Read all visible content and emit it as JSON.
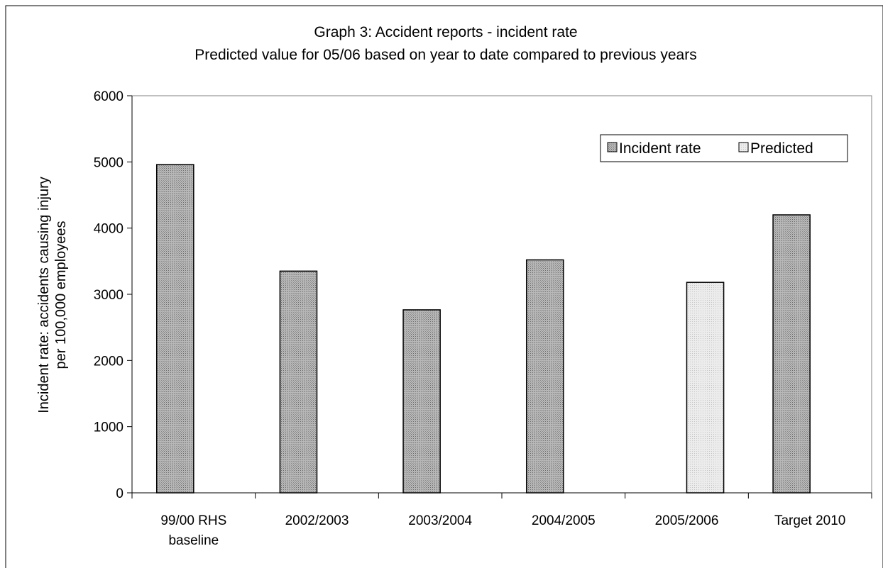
{
  "chart_data": {
    "type": "bar",
    "title": "Graph 3: Accident reports - incident rate",
    "subtitle": "Predicted value for 05/06 based on year to date compared to previous years",
    "ylabel_line1": "Incident rate: accidents causing injury",
    "ylabel_line2": "per 100,000 employees",
    "xlabel": "",
    "ylim": [
      0,
      6000
    ],
    "yticks": [
      0,
      1000,
      2000,
      3000,
      4000,
      5000,
      6000
    ],
    "grid": false,
    "legend_position": "top-right",
    "categories": [
      [
        "99/00 RHS",
        "baseline"
      ],
      [
        "2002/2003"
      ],
      [
        "2003/2004"
      ],
      [
        "2004/2005"
      ],
      [
        "2005/2006"
      ],
      [
        "Target 2010"
      ]
    ],
    "series": [
      {
        "name": "Incident rate",
        "values": [
          4960,
          3350,
          2765,
          3520,
          null,
          4200
        ]
      },
      {
        "name": "Predicted",
        "values": [
          null,
          null,
          null,
          null,
          3180,
          null
        ]
      }
    ]
  }
}
